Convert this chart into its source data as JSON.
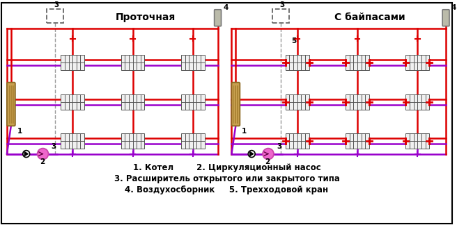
{
  "title_left": "Проточная",
  "title_right": "С байпасами",
  "legend_line1": "1. Котел        2. Циркуляционный насос",
  "legend_line2": "3. Расширитель открытого или закрытого типа",
  "legend_line3": "4. Воздухосборник     5. Трехходовой кран",
  "pipe_red": "#dd0000",
  "pipe_purple": "#9900cc",
  "pipe_gray": "#999999",
  "background": "#ffffff",
  "boiler_fill": "#c8a050",
  "boiler_edge": "#8B6820",
  "radiator_color": "#555555",
  "pump_fill": "#ee66cc",
  "pump_edge": "#cc44aa",
  "expander_edge": "#666666",
  "air_fill": "#bbbbaa",
  "air_edge": "#777777"
}
